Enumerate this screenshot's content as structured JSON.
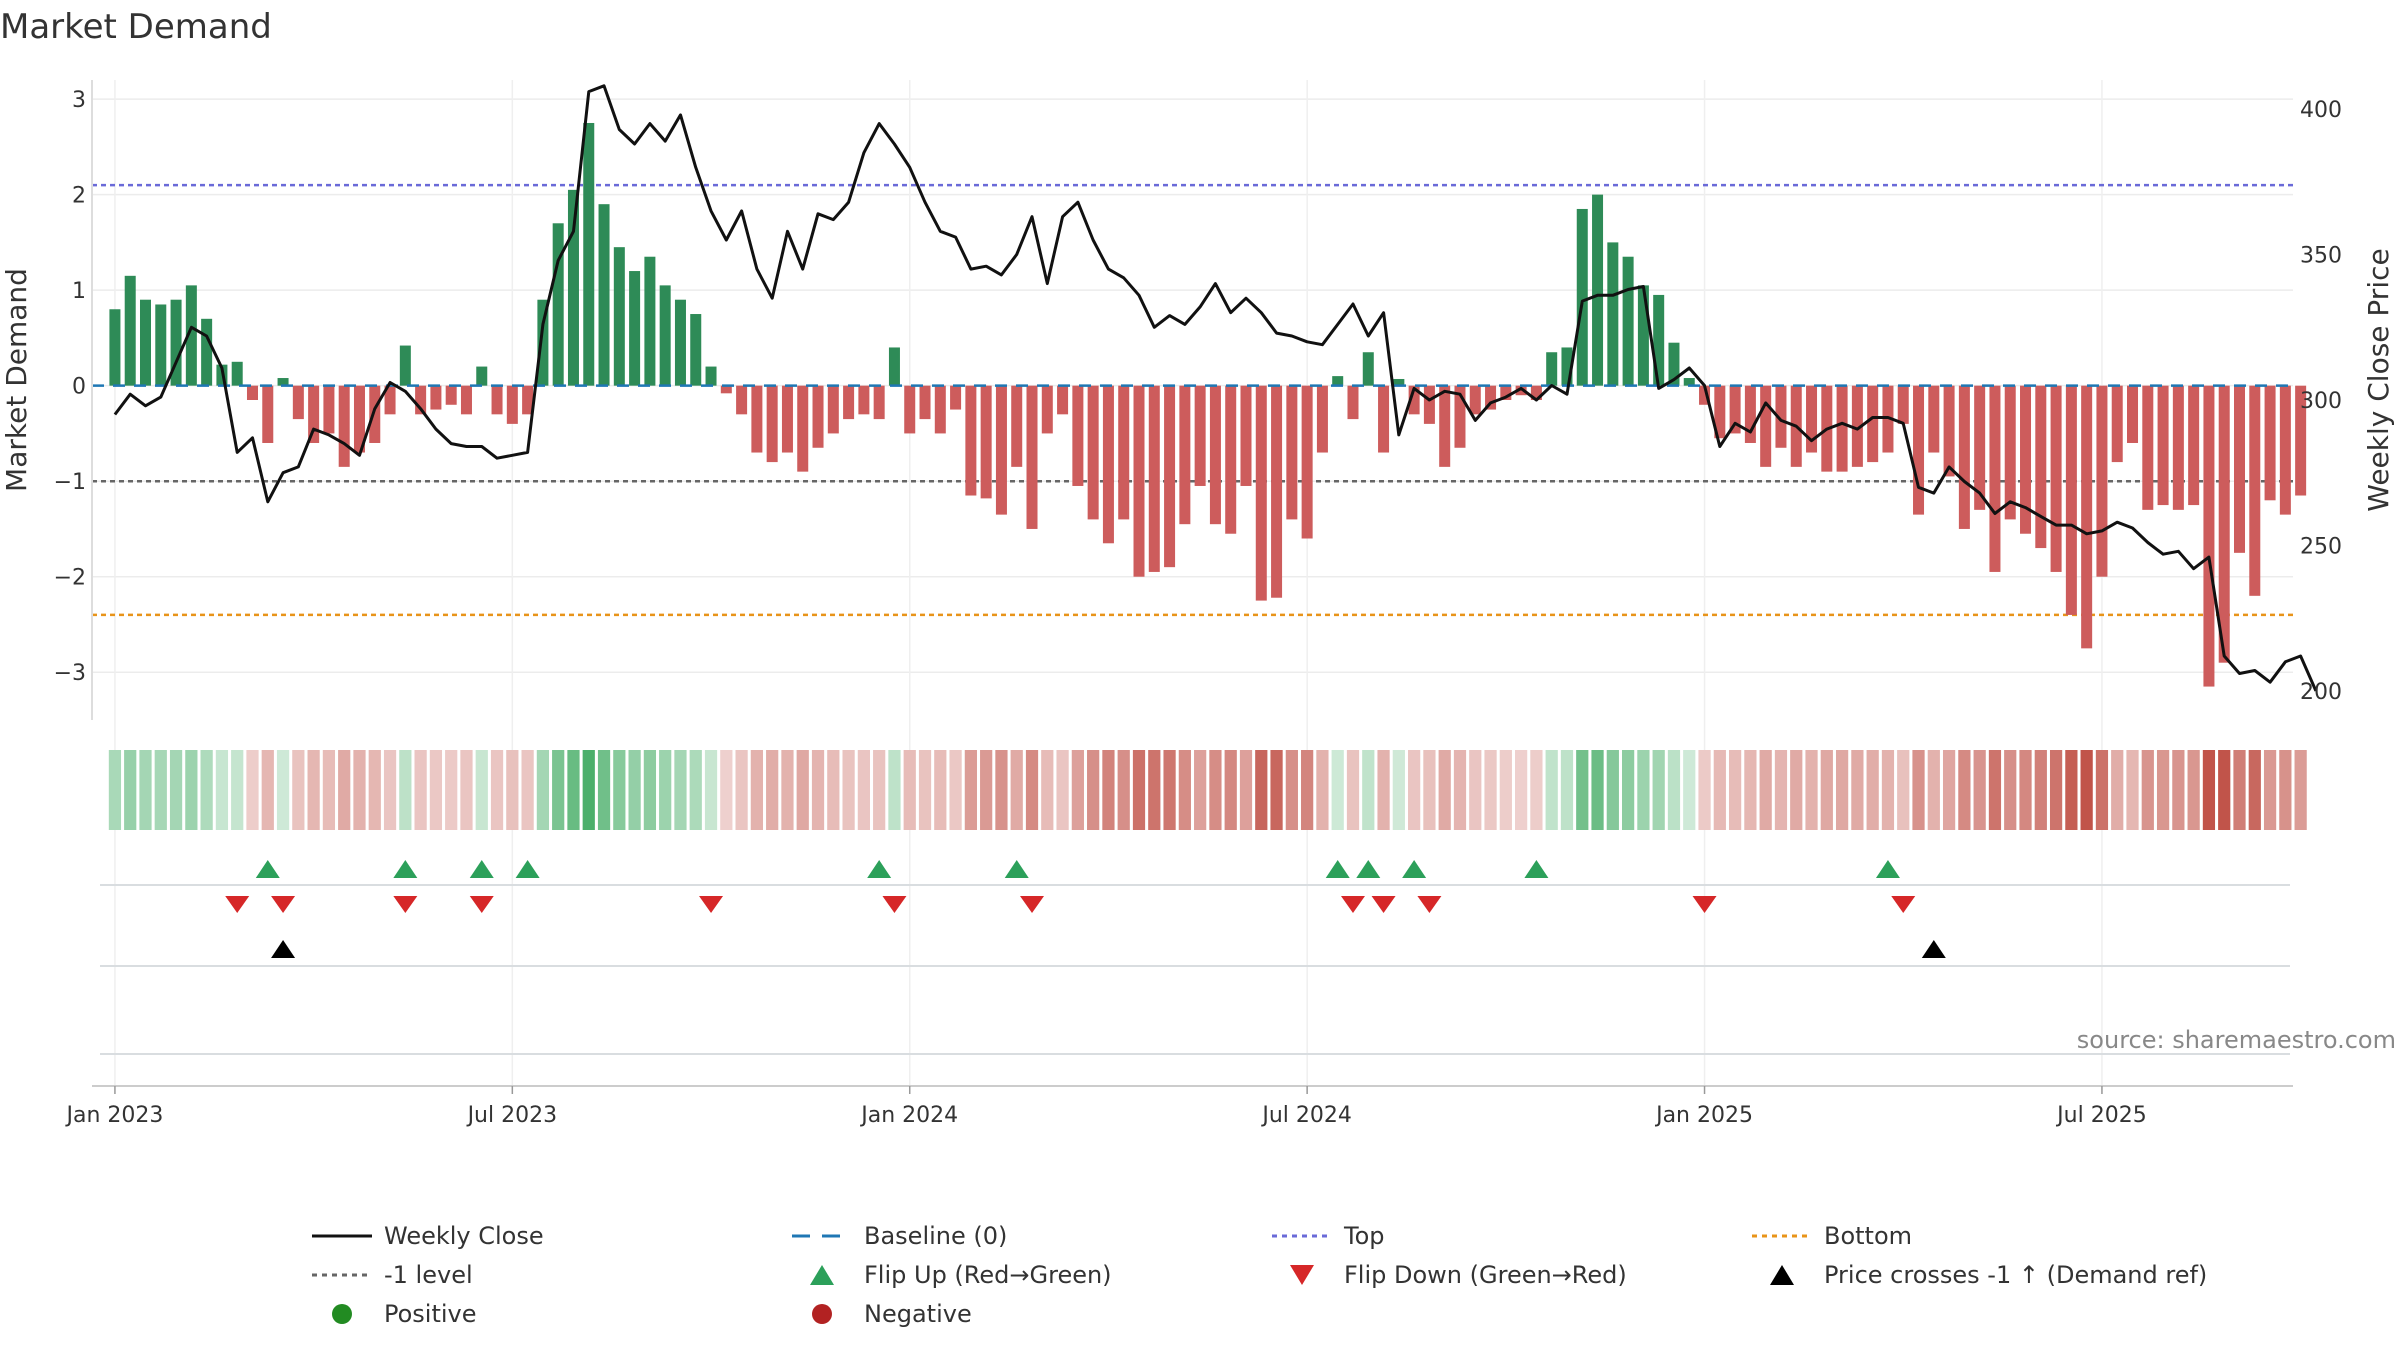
{
  "chart_data": {
    "type": "bar",
    "title": "Market Demand",
    "ylabel": "Market Demand",
    "y2label": "Weekly Close Price",
    "ylim": [
      -3.5,
      3.2
    ],
    "y2lim": [
      190,
      410
    ],
    "yticks": [
      3,
      2,
      1,
      0,
      -1,
      -2,
      -3
    ],
    "ytick_labels": [
      "3",
      "2",
      "1",
      "0",
      "−1",
      "−2",
      "−3"
    ],
    "y2ticks": [
      400,
      350,
      300,
      250,
      200
    ],
    "y2tick_labels": [
      "400",
      "350",
      "300",
      "250",
      "200"
    ],
    "xticks": [
      {
        "week": 0,
        "label": "Jan 2023"
      },
      {
        "week": 26,
        "label": "Jul 2023"
      },
      {
        "week": 52,
        "label": "Jan 2024"
      },
      {
        "week": 78,
        "label": "Jul 2024"
      },
      {
        "week": 104,
        "label": "Jan 2025"
      },
      {
        "week": 130,
        "label": "Jul 2025"
      }
    ],
    "week_range": [
      -1.5,
      142.5
    ],
    "reference_lines": {
      "baseline": 0,
      "top": 2.1,
      "minus_one": -1,
      "bottom": -2.4
    },
    "demand": [
      0.8,
      1.15,
      0.9,
      0.85,
      0.9,
      1.05,
      0.7,
      0.22,
      0.25,
      -0.15,
      -0.6,
      0.08,
      -0.35,
      -0.6,
      -0.5,
      -0.85,
      -0.7,
      -0.6,
      -0.3,
      0.42,
      -0.3,
      -0.25,
      -0.2,
      -0.3,
      0.2,
      -0.3,
      -0.4,
      -0.3,
      0.9,
      1.7,
      2.05,
      2.75,
      1.9,
      1.45,
      1.2,
      1.35,
      1.05,
      0.9,
      0.75,
      0.2,
      -0.08,
      -0.3,
      -0.7,
      -0.8,
      -0.7,
      -0.9,
      -0.65,
      -0.5,
      -0.35,
      -0.3,
      -0.35,
      0.4,
      -0.5,
      -0.35,
      -0.5,
      -0.25,
      -1.15,
      -1.18,
      -1.35,
      -0.85,
      -1.5,
      -0.5,
      -0.3,
      -1.05,
      -1.4,
      -1.65,
      -1.4,
      -2.0,
      -1.95,
      -1.9,
      -1.45,
      -1.05,
      -1.45,
      -1.55,
      -1.05,
      -2.25,
      -2.22,
      -1.4,
      -1.6,
      -0.7,
      0.1,
      -0.35,
      0.35,
      -0.7,
      0.07,
      -0.3,
      -0.4,
      -0.85,
      -0.65,
      -0.3,
      -0.25,
      -0.15,
      -0.1,
      -0.15,
      0.35,
      0.4,
      1.85,
      2.0,
      1.5,
      1.35,
      1.05,
      0.95,
      0.45,
      0.08,
      -0.2,
      -0.55,
      -0.5,
      -0.6,
      -0.85,
      -0.65,
      -0.85,
      -0.7,
      -0.9,
      -0.9,
      -0.85,
      -0.8,
      -0.7,
      -0.4,
      -1.35,
      -0.7,
      -0.95,
      -1.5,
      -1.3,
      -1.95,
      -1.4,
      -1.55,
      -1.7,
      -1.95,
      -2.4,
      -2.75,
      -2.0,
      -0.8,
      -0.6,
      -1.3,
      -1.25,
      -1.3,
      -1.25,
      -3.15,
      -2.9,
      -1.75,
      -2.2,
      -1.2,
      -1.35,
      -1.15
    ],
    "weekly_close": [
      295,
      302,
      298,
      301,
      313,
      325,
      322,
      311,
      282,
      287,
      265,
      275,
      277,
      290,
      288,
      285,
      281,
      297,
      306,
      303,
      297,
      290,
      285,
      284,
      284,
      280,
      281,
      282,
      326,
      348,
      358,
      406,
      408,
      393,
      388,
      395,
      389,
      398,
      380,
      365,
      355,
      365,
      345,
      335,
      358,
      345,
      364,
      362,
      368,
      385,
      395,
      388,
      380,
      368,
      358,
      356,
      345,
      346,
      343,
      350,
      363,
      340,
      363,
      368,
      355,
      345,
      342,
      336,
      325,
      329,
      326,
      332,
      340,
      330,
      335,
      330,
      323,
      322,
      320,
      319,
      326,
      333,
      322,
      330,
      288,
      304,
      300,
      303,
      302,
      293,
      299,
      301,
      304,
      300,
      305,
      302,
      334,
      336,
      336,
      338,
      339,
      304,
      307,
      311,
      305,
      284,
      292,
      289,
      299,
      293,
      291,
      286,
      290,
      292,
      290,
      294,
      294,
      292,
      270,
      268,
      277,
      272,
      268,
      261,
      265,
      263,
      260,
      257,
      257,
      254,
      255,
      258,
      256,
      251,
      247,
      248,
      242,
      246,
      212,
      206,
      207,
      203,
      210,
      212,
      200
    ],
    "flip_up_weeks": [
      10,
      19,
      24,
      27,
      50,
      59,
      80,
      82,
      85,
      93,
      116
    ],
    "flip_down_weeks": [
      8,
      11,
      19,
      24,
      39,
      51,
      60,
      81,
      83,
      86,
      104,
      117
    ],
    "price_cross_weeks": [
      11,
      119
    ],
    "legend": [
      "Weekly Close",
      "Baseline (0)",
      "Top",
      "Bottom",
      "-1 level",
      "Flip Up (Red→Green)",
      "Flip Down (Green→Red)",
      "Price crosses -1 ↑ (Demand ref)",
      "Positive",
      "Negative"
    ]
  },
  "colors": {
    "positive": "#2e8b57",
    "negative": "#cd5c5c",
    "line": "#111111",
    "top_line": "#6a6ad8",
    "bottom_line": "#e8941a",
    "minus_one_line": "#666666",
    "baseline": "#1f77b4",
    "flip_up": "#2ca05a",
    "flip_down": "#d62728",
    "cross_marker": "#000000",
    "positive_dot": "#228b22",
    "negative_dot": "#b22222"
  },
  "source_text": "source: sharemaestro.com"
}
